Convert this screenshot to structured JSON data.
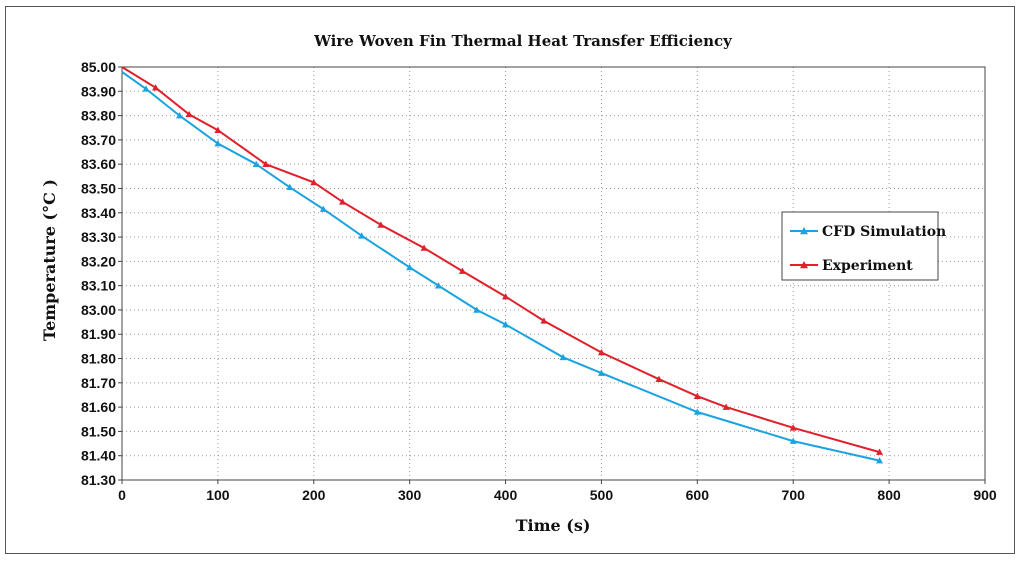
{
  "chart_data": {
    "type": "line",
    "title": "Wire Woven Fin Thermal Heat Transfer Efficiency",
    "xlabel": "Time (s)",
    "ylabel": "Temperature (°C )",
    "xlim": [
      0,
      900
    ],
    "x_ticks": [
      "0",
      "100",
      "200",
      "300",
      "400",
      "500",
      "600",
      "700",
      "800",
      "900"
    ],
    "y_tick_labels": [
      "85.00",
      "83.90",
      "83.80",
      "83.70",
      "83.60",
      "83.50",
      "83.40",
      "83.30",
      "83.20",
      "83.10",
      "83.00",
      "81.90",
      "81.80",
      "81.70",
      "81.60",
      "81.50",
      "81.40",
      "81.30"
    ],
    "grid": true,
    "legend_position": "right",
    "series": [
      {
        "name": "CFD Simulation",
        "color": "#1aa3e0",
        "x": [
          0,
          25,
          60,
          100,
          140,
          175,
          210,
          250,
          300,
          330,
          370,
          400,
          460,
          500,
          600,
          700,
          790
        ],
        "y_tick_index": [
          0.2,
          0.9,
          2.0,
          3.15,
          4.0,
          4.95,
          5.85,
          6.95,
          8.25,
          9.0,
          10.0,
          10.6,
          11.95,
          12.6,
          14.2,
          15.4,
          16.2
        ]
      },
      {
        "name": "Experiment",
        "color": "#e0202a",
        "x": [
          0,
          35,
          70,
          100,
          150,
          200,
          230,
          270,
          315,
          355,
          400,
          440,
          500,
          560,
          600,
          630,
          700,
          790
        ],
        "y_tick_index": [
          0.0,
          0.85,
          1.95,
          2.6,
          4.0,
          4.75,
          5.55,
          6.5,
          7.45,
          8.4,
          9.45,
          10.45,
          11.75,
          12.85,
          13.55,
          14.0,
          14.85,
          15.85
        ]
      }
    ]
  }
}
